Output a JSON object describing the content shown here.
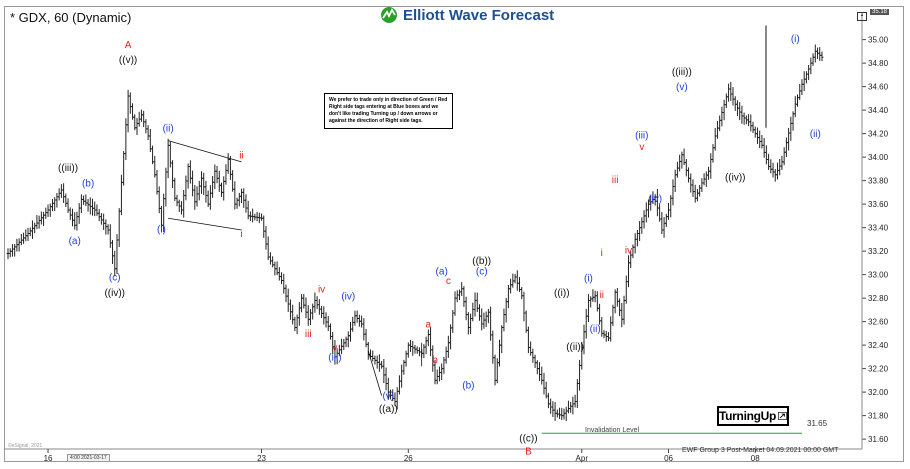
{
  "header": {
    "title": "* GDX, 60 (Dynamic)",
    "logo_text": "Elliott Wave Forecast",
    "price_badge": "35.18"
  },
  "note_text": "We prefer to trade only in direction of Green / Red Right side tags entering at Blue boxes and we don't like trading Turning up / down arrows or against the direction of Right side tags.",
  "turning_label": "TurningUp",
  "invalidation": {
    "label": "Invalidation Level",
    "value": "31.65"
  },
  "footer": "EWF Group 3 Post-Market 04.09.2021 00:00 GMT",
  "copyright": "©eSignal, 2021",
  "date_box": "4:00 2021-03-17",
  "colors": {
    "red": "#e8201a",
    "blue": "#1f3fd8",
    "black": "#111111",
    "green": "#2aa02a",
    "bars": "#222222"
  },
  "chart_data": {
    "type": "line",
    "symbol": "GDX",
    "interval": "60",
    "ylim": [
      31.55,
      35.15
    ],
    "y_ticks": [
      31.6,
      31.8,
      32.0,
      32.2,
      32.4,
      32.6,
      32.8,
      33.0,
      33.2,
      33.4,
      33.6,
      33.8,
      34.0,
      34.2,
      34.4,
      34.6,
      34.8,
      35.0
    ],
    "y_tick_labels": [
      "31.60",
      "31.80",
      "32.00",
      "32.20",
      "32.40",
      "32.60",
      "32.80",
      "33.00",
      "33.20",
      "33.40",
      "33.60",
      "33.80",
      "34.00",
      "34.20",
      "34.40",
      "34.60",
      "34.80",
      "35.00"
    ],
    "x_ticks": [
      {
        "label": "16",
        "slot": 6
      },
      {
        "label": "23",
        "slot": 38
      },
      {
        "label": "26",
        "slot": 60
      },
      {
        "label": "Apr",
        "slot": 86
      },
      {
        "label": "06",
        "slot": 99
      },
      {
        "label": "08",
        "slot": 112
      }
    ],
    "n_slots": 128,
    "price_path": [
      [
        0,
        33.18
      ],
      [
        3,
        33.35
      ],
      [
        6,
        33.55
      ],
      [
        8,
        33.72
      ],
      [
        9,
        33.55
      ],
      [
        10,
        33.42
      ],
      [
        11,
        33.64
      ],
      [
        13,
        33.55
      ],
      [
        15,
        33.38
      ],
      [
        16,
        33.05
      ],
      [
        18,
        34.52
      ],
      [
        19,
        34.25
      ],
      [
        20,
        34.36
      ],
      [
        21,
        34.18
      ],
      [
        22,
        33.85
      ],
      [
        23,
        33.42
      ],
      [
        24,
        34.1
      ],
      [
        25,
        33.65
      ],
      [
        26,
        33.55
      ],
      [
        27,
        33.92
      ],
      [
        28,
        33.62
      ],
      [
        29,
        33.82
      ],
      [
        30,
        33.6
      ],
      [
        31,
        33.88
      ],
      [
        32,
        33.7
      ],
      [
        33,
        33.98
      ],
      [
        34,
        33.6
      ],
      [
        35,
        33.7
      ],
      [
        36,
        33.5
      ],
      [
        38,
        33.48
      ],
      [
        39,
        33.15
      ],
      [
        41,
        32.95
      ],
      [
        43,
        32.55
      ],
      [
        44,
        32.8
      ],
      [
        45,
        32.62
      ],
      [
        46,
        32.78
      ],
      [
        48,
        32.56
      ],
      [
        49,
        32.3
      ],
      [
        51,
        32.48
      ],
      [
        52,
        32.65
      ],
      [
        53,
        32.58
      ],
      [
        54,
        32.32
      ],
      [
        56,
        32.22
      ],
      [
        57,
        32.0
      ],
      [
        58,
        31.92
      ],
      [
        59,
        32.18
      ],
      [
        60,
        32.4
      ],
      [
        62,
        32.33
      ],
      [
        63,
        32.49
      ],
      [
        64,
        32.1
      ],
      [
        65,
        32.2
      ],
      [
        66,
        32.42
      ],
      [
        67,
        32.8
      ],
      [
        68,
        32.88
      ],
      [
        69,
        32.55
      ],
      [
        70,
        32.78
      ],
      [
        71,
        32.58
      ],
      [
        72,
        32.68
      ],
      [
        73,
        32.1
      ],
      [
        74,
        32.55
      ],
      [
        75,
        32.88
      ],
      [
        76,
        32.98
      ],
      [
        77,
        32.82
      ],
      [
        78,
        32.38
      ],
      [
        79,
        32.25
      ],
      [
        80,
        32.1
      ],
      [
        81,
        31.9
      ],
      [
        82,
        31.82
      ],
      [
        83,
        31.8
      ],
      [
        85,
        31.92
      ],
      [
        86,
        32.38
      ],
      [
        87,
        32.78
      ],
      [
        88,
        32.82
      ],
      [
        89,
        32.5
      ],
      [
        90,
        32.46
      ],
      [
        91,
        32.85
      ],
      [
        92,
        32.62
      ],
      [
        93,
        33.1
      ],
      [
        94,
        33.3
      ],
      [
        96,
        33.6
      ],
      [
        97,
        33.66
      ],
      [
        98,
        33.38
      ],
      [
        99,
        33.55
      ],
      [
        100,
        33.85
      ],
      [
        101,
        34.02
      ],
      [
        102,
        33.82
      ],
      [
        103,
        33.65
      ],
      [
        104,
        33.78
      ],
      [
        105,
        33.88
      ],
      [
        106,
        34.18
      ],
      [
        107,
        34.38
      ],
      [
        108,
        34.58
      ],
      [
        109,
        34.45
      ],
      [
        110,
        34.35
      ],
      [
        111,
        34.3
      ],
      [
        112,
        34.2
      ],
      [
        113,
        34.1
      ],
      [
        114,
        33.92
      ],
      [
        115,
        33.85
      ],
      [
        116,
        33.96
      ],
      [
        118,
        34.45
      ],
      [
        119,
        34.62
      ],
      [
        120,
        34.75
      ],
      [
        121,
        34.9
      ],
      [
        122,
        34.85
      ]
    ],
    "projection": [
      [
        122,
        34.85
      ],
      [
        123,
        34.95
      ],
      [
        126,
        34.25
      ],
      [
        132,
        35.12
      ]
    ],
    "wave_labels": [
      {
        "text": "A",
        "slot": 18,
        "y": 34.93,
        "color": "red"
      },
      {
        "text": "((v))",
        "slot": 18,
        "y": 34.8,
        "color": "black"
      },
      {
        "text": "((iii))",
        "slot": 9,
        "y": 33.88,
        "color": "black"
      },
      {
        "text": "(b)",
        "slot": 12,
        "y": 33.75,
        "color": "blue"
      },
      {
        "text": "(a)",
        "slot": 10,
        "y": 33.26,
        "color": "blue"
      },
      {
        "text": "(c)",
        "slot": 16,
        "y": 32.95,
        "color": "blue"
      },
      {
        "text": "((iv))",
        "slot": 16,
        "y": 32.82,
        "color": "black"
      },
      {
        "text": "(ii)",
        "slot": 24,
        "y": 34.22,
        "color": "blue"
      },
      {
        "text": "(i)",
        "slot": 23,
        "y": 33.36,
        "color": "blue"
      },
      {
        "text": "ii",
        "slot": 35,
        "y": 33.99,
        "color": "red"
      },
      {
        "text": "i",
        "slot": 35,
        "y": 33.32,
        "color": "red"
      },
      {
        "text": "iv",
        "slot": 47,
        "y": 32.85,
        "color": "red"
      },
      {
        "text": "(iv)",
        "slot": 51,
        "y": 32.79,
        "color": "blue"
      },
      {
        "text": "iii",
        "slot": 45,
        "y": 32.47,
        "color": "red"
      },
      {
        "text": "v",
        "slot": 49,
        "y": 32.35,
        "color": "red"
      },
      {
        "text": "(iii)",
        "slot": 49,
        "y": 32.27,
        "color": "blue"
      },
      {
        "text": "a",
        "slot": 63,
        "y": 32.55,
        "color": "red"
      },
      {
        "text": "b",
        "slot": 64,
        "y": 32.25,
        "color": "red"
      },
      {
        "text": "(v)",
        "slot": 57,
        "y": 31.94,
        "color": "blue"
      },
      {
        "text": "((a))",
        "slot": 57,
        "y": 31.83,
        "color": "black"
      },
      {
        "text": "(a)",
        "slot": 65,
        "y": 33.0,
        "color": "blue"
      },
      {
        "text": "c",
        "slot": 66,
        "y": 32.92,
        "color": "red"
      },
      {
        "text": "((b))",
        "slot": 71,
        "y": 33.09,
        "color": "black"
      },
      {
        "text": "(c)",
        "slot": 71,
        "y": 33.0,
        "color": "blue"
      },
      {
        "text": "(b)",
        "slot": 69,
        "y": 32.03,
        "color": "blue"
      },
      {
        "text": "((c))",
        "slot": 78,
        "y": 31.58,
        "color": "black"
      },
      {
        "text": "B",
        "slot": 78,
        "y": 31.47,
        "color": "red"
      },
      {
        "text": "((i))",
        "slot": 83,
        "y": 32.82,
        "color": "black"
      },
      {
        "text": "(i)",
        "slot": 87,
        "y": 32.94,
        "color": "blue"
      },
      {
        "text": "ii",
        "slot": 89,
        "y": 32.8,
        "color": "red"
      },
      {
        "text": "((ii))",
        "slot": 85,
        "y": 32.36,
        "color": "black"
      },
      {
        "text": "(ii)",
        "slot": 88,
        "y": 32.51,
        "color": "blue"
      },
      {
        "text": "i",
        "slot": 89,
        "y": 33.16,
        "color": "red"
      },
      {
        "text": "iii",
        "slot": 91,
        "y": 33.78,
        "color": "red"
      },
      {
        "text": "iv",
        "slot": 93,
        "y": 33.18,
        "color": "red"
      },
      {
        "text": "(iii)",
        "slot": 95,
        "y": 34.16,
        "color": "blue"
      },
      {
        "text": "v",
        "slot": 95,
        "y": 34.06,
        "color": "red"
      },
      {
        "text": "(iv)",
        "slot": 97,
        "y": 33.62,
        "color": "blue"
      },
      {
        "text": "((iii))",
        "slot": 101,
        "y": 34.7,
        "color": "black"
      },
      {
        "text": "(v)",
        "slot": 101,
        "y": 34.57,
        "color": "blue"
      },
      {
        "text": "((iv))",
        "slot": 109,
        "y": 33.8,
        "color": "black"
      },
      {
        "text": "(i)",
        "slot": 118,
        "y": 34.98,
        "color": "blue"
      },
      {
        "text": "(ii)",
        "slot": 121,
        "y": 34.17,
        "color": "blue"
      }
    ],
    "invalidation_level": 31.65,
    "channels": [
      [
        [
          24,
          34.14
        ],
        [
          35,
          33.96
        ],
        [
          24,
          33.48
        ],
        [
          35,
          33.38
        ]
      ],
      [
        [
          62,
          32.42
        ],
        [
          62,
          32.22
        ],
        [
          54,
          32.35
        ],
        [
          56,
          31.97
        ]
      ]
    ]
  }
}
